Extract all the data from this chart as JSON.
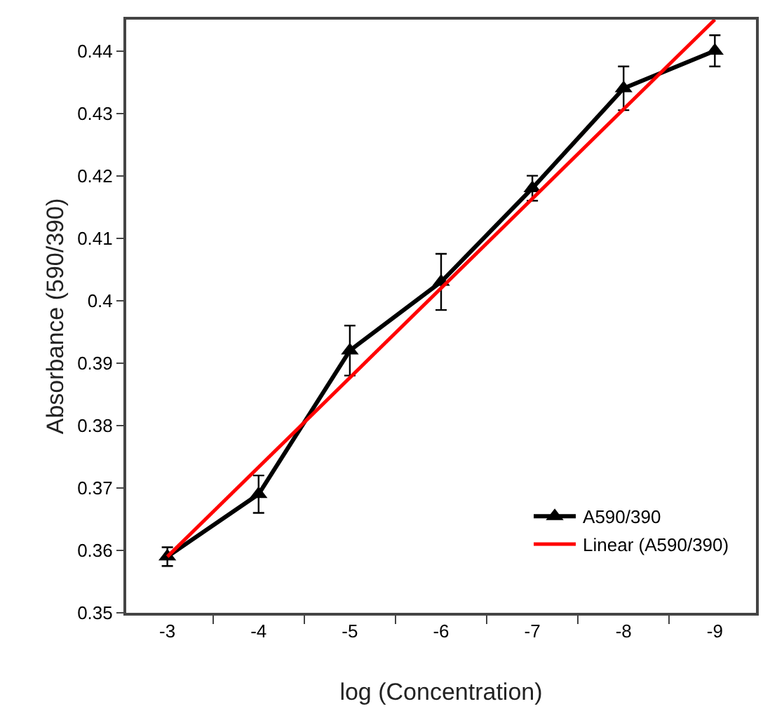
{
  "chart_data": {
    "type": "line",
    "xlabel": "log (Concentration)",
    "ylabel": "Absorbance (590/390)",
    "categories": [
      "-3",
      "-4",
      "-5",
      "-6",
      "-7",
      "-8",
      "-9"
    ],
    "series": [
      {
        "name": "A590/390",
        "color": "#000000",
        "values": [
          0.359,
          0.369,
          0.392,
          0.403,
          0.418,
          0.434,
          0.44
        ],
        "errors": [
          0.0015,
          0.003,
          0.004,
          0.0045,
          0.002,
          0.0035,
          0.0025
        ],
        "marker": "triangle"
      },
      {
        "name": "Linear (A590/390)",
        "color": "#ff0000",
        "type": "line",
        "x": [
          "-3",
          "-9"
        ],
        "values": [
          0.359,
          0.445
        ],
        "marker": "none"
      }
    ],
    "ylim": [
      0.35,
      0.445
    ],
    "yticks": [
      0.35,
      0.36,
      0.37,
      0.38,
      0.39,
      0.4,
      0.41,
      0.42,
      0.43,
      0.44
    ],
    "grid": false,
    "legend": "bottom right"
  }
}
